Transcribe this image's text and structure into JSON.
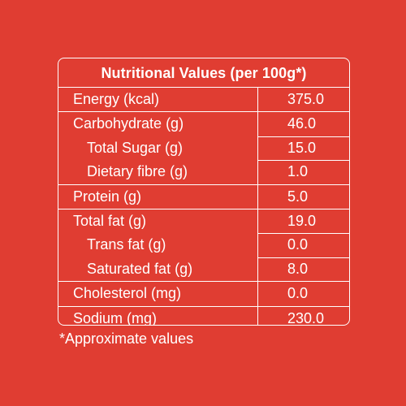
{
  "title": "Nutritional Values (per 100g*)",
  "rows": [
    {
      "label": "Energy (kcal)",
      "value": "375.0"
    },
    {
      "label": "Carbohydrate (g)",
      "value": "46.0"
    },
    {
      "label": "Total Sugar (g)",
      "value": "15.0"
    },
    {
      "label": "Dietary fibre (g)",
      "value": "1.0"
    },
    {
      "label": "Protein (g)",
      "value": "5.0"
    },
    {
      "label": "Total fat (g)",
      "value": "19.0"
    },
    {
      "label": "Trans fat (g)",
      "value": "0.0"
    },
    {
      "label": "Saturated fat (g)",
      "value": "8.0"
    },
    {
      "label": "Cholesterol (mg)",
      "value": "0.0"
    },
    {
      "label": "Sodium (mg)",
      "value": "230.0"
    }
  ],
  "footnote": "*Approximate values",
  "colors": {
    "background": "#e03d32",
    "text": "#ffffff"
  }
}
